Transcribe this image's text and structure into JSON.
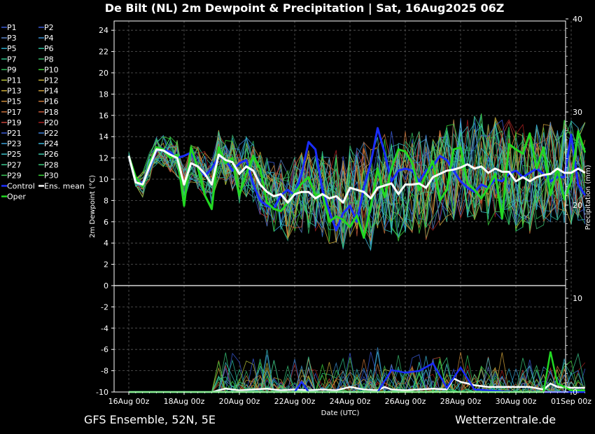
{
  "title": "De Bilt  (NL)  2m Dewpoint & Precipitation | Sat, 16Aug2025 06Z",
  "footer": {
    "left": "GFS Ensemble, 52N, 5E",
    "right": "Wetterzentrale.de"
  },
  "chart_data": {
    "type": "line",
    "title": "De Bilt  (NL)  2m Dewpoint & Precipitation | Sat, 16Aug2025 06Z",
    "xlabel": "Date (UTC)",
    "ylabel": "2m Dewpoint (°C)",
    "y2label": "Precipitation (mm)",
    "x_ticks": [
      "16Aug 00z",
      "18Aug 00z",
      "20Aug 00z",
      "22Aug 00z",
      "24Aug 00z",
      "26Aug 00z",
      "28Aug 00z",
      "30Aug 00z",
      "01Sep 00z"
    ],
    "x_range_days": [
      0,
      16.5
    ],
    "y_ticks": [
      "-10",
      "-8",
      "-6",
      "-4",
      "-2",
      "0",
      "2",
      "4",
      "6",
      "8",
      "10",
      "12",
      "14",
      "16",
      "18",
      "20",
      "22",
      "24"
    ],
    "ylim": [
      -10,
      25
    ],
    "y2_ticks": [
      "0",
      "10",
      "20",
      "30",
      "40"
    ],
    "y2lim_upper": [
      10,
      40
    ],
    "y2lim_lower": [
      0,
      11
    ],
    "grid": true,
    "legend_position": "left",
    "legend": [
      {
        "name": "P1",
        "color": "#3a5bd9"
      },
      {
        "name": "P2",
        "color": "#3a5bd9"
      },
      {
        "name": "P3",
        "color": "#5b83c9"
      },
      {
        "name": "P4",
        "color": "#3a8fd1"
      },
      {
        "name": "P5",
        "color": "#2aa9c9"
      },
      {
        "name": "P6",
        "color": "#2bbd9a"
      },
      {
        "name": "P7",
        "color": "#2fc48d"
      },
      {
        "name": "P8",
        "color": "#36b86a"
      },
      {
        "name": "P9",
        "color": "#2fbf5a"
      },
      {
        "name": "P10",
        "color": "#3fd13a"
      },
      {
        "name": "P11",
        "color": "#b5c23a"
      },
      {
        "name": "P12",
        "color": "#c9b43a"
      },
      {
        "name": "P13",
        "color": "#d1b03a"
      },
      {
        "name": "P14",
        "color": "#d1a23a"
      },
      {
        "name": "P15",
        "color": "#c98a3a"
      },
      {
        "name": "P16",
        "color": "#c9763a"
      },
      {
        "name": "P17",
        "color": "#c9703a"
      },
      {
        "name": "P18",
        "color": "#c95a3a"
      },
      {
        "name": "P19",
        "color": "#c9453a"
      },
      {
        "name": "P20",
        "color": "#a82020"
      },
      {
        "name": "P21",
        "color": "#3a5bd9"
      },
      {
        "name": "P22",
        "color": "#3a7fd9"
      },
      {
        "name": "P23",
        "color": "#3a9fd9"
      },
      {
        "name": "P24",
        "color": "#3ab5d9"
      },
      {
        "name": "P25",
        "color": "#3ac0c9"
      },
      {
        "name": "P26",
        "color": "#3ac9a9"
      },
      {
        "name": "P27",
        "color": "#3ac98f"
      },
      {
        "name": "P28",
        "color": "#3ac97a"
      },
      {
        "name": "P29",
        "color": "#3ac95a"
      },
      {
        "name": "P30",
        "color": "#3ad93a"
      },
      {
        "name": "Control",
        "color": "#1a2dff"
      },
      {
        "name": "Ens. mean",
        "color": "#ffffff"
      },
      {
        "name": "Oper",
        "color": "#22d822"
      }
    ],
    "series": [
      {
        "name": "Control",
        "color": "#1a2dff",
        "x": [
          0,
          0.25,
          0.5,
          0.75,
          1,
          1.25,
          1.5,
          1.75,
          2,
          2.25,
          2.5,
          2.75,
          3,
          3.25,
          3.5,
          3.75,
          4,
          4.25,
          4.5,
          4.75,
          5,
          5.25,
          5.5,
          5.75,
          6,
          6.25,
          6.5,
          6.75,
          7,
          7.25,
          7.5,
          7.75,
          8,
          8.25,
          8.5,
          8.75,
          9,
          9.25,
          9.5,
          9.75,
          10,
          10.25,
          10.5,
          10.75,
          11,
          11.25,
          11.5,
          11.75,
          12,
          12.25,
          12.5,
          12.75,
          13,
          13.25,
          13.5,
          13.75,
          14,
          14.25,
          14.5,
          14.75,
          15,
          15.25,
          15.5,
          15.75,
          16,
          16.25,
          16.5
        ],
        "y": [
          12.2,
          10,
          9.6,
          11,
          12.7,
          12.8,
          12.5,
          12,
          12.2,
          12.5,
          11.2,
          10.3,
          11,
          12.2,
          11.8,
          10.8,
          11.5,
          11.8,
          9.5,
          8,
          7.5,
          7.3,
          8.5,
          9,
          8.5,
          10.5,
          13.5,
          12.8,
          9,
          7,
          5.2,
          6.8,
          7.5,
          6,
          9.2,
          11.5,
          14.8,
          12.5,
          9.8,
          10.8,
          11,
          10.8,
          9.8,
          10.8,
          11.2,
          12.2,
          11.8,
          10.8,
          9.8,
          9.2,
          8.8,
          9.5,
          9.2,
          10,
          9.8,
          10.5,
          10.8,
          10.2,
          10.6,
          11,
          10.5,
          9.8,
          10.2,
          10.2,
          14.2,
          9.5,
          8.5
        ]
      },
      {
        "name": "Oper",
        "color": "#22d822",
        "x": [
          0,
          0.25,
          0.5,
          0.75,
          1,
          1.25,
          1.5,
          1.75,
          2,
          2.25,
          2.5,
          2.75,
          3,
          3.25,
          3.5,
          3.75,
          4,
          4.25,
          4.5,
          4.75,
          5,
          5.25,
          5.5,
          5.75,
          6,
          6.25,
          6.5,
          6.75,
          7,
          7.25,
          7.5,
          7.75,
          8,
          8.25,
          8.5,
          8.75,
          9,
          9.25,
          9.5,
          9.75,
          10,
          10.25,
          10.5,
          10.75,
          11,
          11.25,
          11.5,
          11.75,
          12,
          12.25,
          12.5,
          12.75,
          13,
          13.25,
          13.5,
          13.75,
          14,
          14.25,
          14.5,
          14.75,
          15,
          15.25,
          15.5,
          15.75,
          16,
          16.25,
          16.5
        ],
        "y": [
          12.2,
          10.2,
          9.3,
          11.5,
          13,
          12.8,
          12,
          12.3,
          7.5,
          13,
          11,
          8.5,
          7.2,
          13,
          11.5,
          12,
          8.5,
          10.5,
          12.2,
          11,
          7.8,
          7.2,
          7,
          7.8,
          8.7,
          9.6,
          10.2,
          8.5,
          8.6,
          6,
          6.5,
          6.2,
          5.5,
          6.6,
          4.5,
          7.4,
          11,
          8.3,
          11,
          12.8,
          12.6,
          11.5,
          9,
          10.4,
          11.7,
          8,
          9,
          12.8,
          13,
          9.6,
          9,
          8.2,
          9.2,
          10.5,
          6.3,
          13.3,
          12.8,
          12.4,
          14.3,
          11,
          13,
          8.5,
          11,
          8.1,
          9.8,
          14.5,
          12.5
        ]
      },
      {
        "name": "Ens. mean",
        "color": "#ffffff",
        "x": [
          0,
          0.25,
          0.5,
          0.75,
          1,
          1.25,
          1.5,
          1.75,
          2,
          2.25,
          2.5,
          2.75,
          3,
          3.25,
          3.5,
          3.75,
          4,
          4.25,
          4.5,
          4.75,
          5,
          5.25,
          5.5,
          5.75,
          6,
          6.25,
          6.5,
          6.75,
          7,
          7.25,
          7.5,
          7.75,
          8,
          8.25,
          8.5,
          8.75,
          9,
          9.25,
          9.5,
          9.75,
          10,
          10.25,
          10.5,
          10.75,
          11,
          11.25,
          11.5,
          11.75,
          12,
          12.25,
          12.5,
          12.75,
          13,
          13.25,
          13.5,
          13.75,
          14,
          14.25,
          14.5,
          14.75,
          15,
          15.25,
          15.5,
          15.75,
          16,
          16.25,
          16.5
        ],
        "y": [
          12.2,
          9.7,
          9.5,
          11.2,
          12.8,
          12.7,
          12.3,
          12,
          9.5,
          11.5,
          11.2,
          10.5,
          9.5,
          12.3,
          11.8,
          11.6,
          10.5,
          11.2,
          10.8,
          9.5,
          8.8,
          8.4,
          8.6,
          7.8,
          8.6,
          8.8,
          8.8,
          8.2,
          8.6,
          8.2,
          8.4,
          7.8,
          9.2,
          9,
          8.8,
          8.2,
          9.2,
          9.4,
          9.6,
          8.6,
          9.5,
          9.5,
          9.6,
          9.2,
          10.2,
          10.5,
          10.8,
          10.9,
          11.1,
          11.4,
          11,
          11.2,
          10.6,
          11,
          10.7,
          10.7,
          9.8,
          10.2,
          9.8,
          10.2,
          10.4,
          10.5,
          11,
          10.6,
          10.6,
          11,
          10.6
        ]
      }
    ],
    "precipitation_series": [
      {
        "name": "Ens. mean",
        "color": "#ffffff",
        "x": [
          0,
          1,
          2,
          3,
          3.5,
          4,
          4.5,
          5,
          5.5,
          6,
          6.5,
          7,
          7.5,
          8,
          8.5,
          9,
          9.25,
          9.5,
          10,
          10.5,
          11,
          11.5,
          11.75,
          12,
          12.5,
          13,
          14,
          14.5,
          15,
          15.25,
          15.5,
          16,
          16.5
        ],
        "y": [
          0,
          0,
          0,
          0,
          0.4,
          0.2,
          0.3,
          0.4,
          0.2,
          0.3,
          0.2,
          0.3,
          0.2,
          0.6,
          0.3,
          0.2,
          0.6,
          0.3,
          0.2,
          0.3,
          0.4,
          0.3,
          1.6,
          1.2,
          0.8,
          0.6,
          0.6,
          0.6,
          0.3,
          1.0,
          0.6,
          0.5,
          0.5
        ]
      },
      {
        "name": "Control",
        "color": "#1a2dff",
        "x": [
          0,
          2,
          4,
          5,
          6,
          6.25,
          6.5,
          7,
          8,
          8.5,
          9,
          9.5,
          10,
          10.5,
          11,
          11.5,
          12,
          12.5,
          13,
          14,
          15,
          15.5,
          16,
          16.5
        ],
        "y": [
          0,
          0,
          0,
          0,
          0,
          1.2,
          0,
          0,
          0,
          0,
          0,
          2.6,
          2.3,
          2.5,
          3.4,
          0.5,
          2.9,
          0.3,
          0.2,
          0,
          0,
          0,
          0,
          0
        ]
      },
      {
        "name": "Oper",
        "color": "#22d822",
        "x": [
          0,
          2,
          4,
          5,
          6,
          7,
          8,
          9,
          10,
          11,
          12,
          13,
          14,
          14.5,
          15,
          15.25,
          15.5,
          16,
          16.5
        ],
        "y": [
          0,
          0,
          0,
          0,
          0,
          0,
          0,
          0,
          0,
          0,
          0,
          0,
          0,
          0,
          0,
          4.8,
          1.0,
          0.2,
          0.2
        ]
      }
    ]
  }
}
